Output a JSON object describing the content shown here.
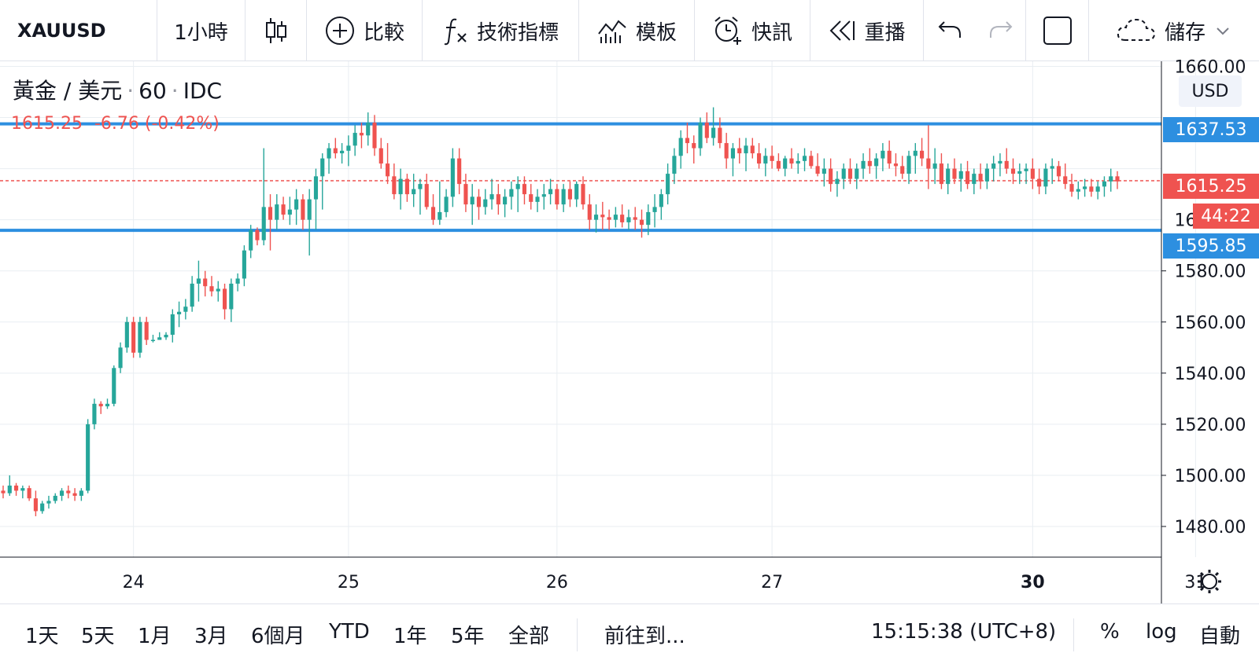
{
  "toolbar": {
    "symbol": "XAUUSD",
    "interval": "1小時",
    "chart_type_icon": "candlestick-icon",
    "compare": "比較",
    "indicators": "技術指標",
    "templates": "模板",
    "alerts": "快訊",
    "replay": "重播",
    "save": "儲存"
  },
  "legend": {
    "title": "黃金 / 美元",
    "interval": "60",
    "source": "IDC",
    "price": "1615.25",
    "change": "-6.76 (-0.42%)"
  },
  "price_axis": {
    "currency": "USD",
    "labels": [
      "1580.00",
      "1560.00",
      "1540.00",
      "1520.00",
      "1500.00",
      "1480.00"
    ],
    "top_label_partial": "1660.00",
    "hidden_label_partial": "1600.00"
  },
  "badges": {
    "upper_line": "1637.53",
    "last_price": "1615.25",
    "countdown": "44:22",
    "lower_line": "1595.85"
  },
  "time_axis": {
    "labels": [
      "24",
      "25",
      "26",
      "27",
      "30",
      "31"
    ]
  },
  "bottombar": {
    "ranges": [
      "1天",
      "5天",
      "1月",
      "3月",
      "6個月",
      "YTD",
      "1年",
      "5年",
      "全部"
    ],
    "goto": "前往到...",
    "clock": "15:15:38 (UTC+8)",
    "percent": "%",
    "log": "log",
    "auto": "自動"
  },
  "colors": {
    "up": "#26a69a",
    "down": "#ef5350",
    "hline": "#2d8fe0",
    "grid": "#e9eef2",
    "axis_text": "#131722"
  },
  "chart_data": {
    "type": "candlestick",
    "interval": "60",
    "ylim": [
      1468,
      1662
    ],
    "horizontal_lines": [
      1637.53,
      1595.85
    ],
    "last_price": 1615.25,
    "x_ticks": [
      {
        "label": "24",
        "index": 20
      },
      {
        "label": "25",
        "index": 53
      },
      {
        "label": "26",
        "index": 85
      },
      {
        "label": "27",
        "index": 118
      },
      {
        "label": "30",
        "index": 158
      },
      {
        "label": "31",
        "index": 183
      }
    ],
    "candles": [
      [
        1494,
        1496,
        1491,
        1493
      ],
      [
        1493,
        1500,
        1492,
        1496
      ],
      [
        1496,
        1497,
        1492,
        1494
      ],
      [
        1494,
        1496,
        1491,
        1495
      ],
      [
        1495,
        1496,
        1490,
        1491
      ],
      [
        1491,
        1494,
        1484,
        1486
      ],
      [
        1486,
        1490,
        1485,
        1489
      ],
      [
        1489,
        1492,
        1487,
        1490
      ],
      [
        1490,
        1493,
        1489,
        1492
      ],
      [
        1492,
        1495,
        1490,
        1494
      ],
      [
        1494,
        1496,
        1491,
        1493
      ],
      [
        1493,
        1495,
        1490,
        1492
      ],
      [
        1492,
        1495,
        1490,
        1494
      ],
      [
        1494,
        1522,
        1493,
        1520
      ],
      [
        1520,
        1530,
        1518,
        1528
      ],
      [
        1528,
        1529,
        1524,
        1527
      ],
      [
        1527,
        1530,
        1526,
        1528
      ],
      [
        1528,
        1543,
        1527,
        1542
      ],
      [
        1542,
        1552,
        1540,
        1550
      ],
      [
        1550,
        1562,
        1548,
        1560
      ],
      [
        1560,
        1562,
        1546,
        1548
      ],
      [
        1548,
        1562,
        1546,
        1560
      ],
      [
        1560,
        1562,
        1551,
        1553
      ],
      [
        1553,
        1555,
        1552,
        1553
      ],
      [
        1553,
        1556,
        1553,
        1554
      ],
      [
        1554,
        1556,
        1553,
        1555
      ],
      [
        1555,
        1565,
        1552,
        1563
      ],
      [
        1563,
        1568,
        1558,
        1564
      ],
      [
        1564,
        1569,
        1561,
        1566
      ],
      [
        1566,
        1578,
        1564,
        1575
      ],
      [
        1575,
        1584,
        1568,
        1577
      ],
      [
        1577,
        1580,
        1570,
        1574
      ],
      [
        1574,
        1578,
        1570,
        1572
      ],
      [
        1572,
        1576,
        1568,
        1573
      ],
      [
        1573,
        1575,
        1561,
        1565
      ],
      [
        1565,
        1577,
        1560,
        1575
      ],
      [
        1575,
        1579,
        1572,
        1577
      ],
      [
        1577,
        1590,
        1574,
        1588
      ],
      [
        1588,
        1598,
        1585,
        1596
      ],
      [
        1596,
        1597,
        1590,
        1592
      ],
      [
        1592,
        1628,
        1590,
        1605
      ],
      [
        1605,
        1610,
        1588,
        1600
      ],
      [
        1600,
        1610,
        1596,
        1606
      ],
      [
        1606,
        1609,
        1600,
        1602
      ],
      [
        1602,
        1609,
        1598,
        1604
      ],
      [
        1604,
        1612,
        1598,
        1608
      ],
      [
        1608,
        1610,
        1596,
        1600
      ],
      [
        1600,
        1612,
        1586,
        1608
      ],
      [
        1608,
        1620,
        1596,
        1617
      ],
      [
        1617,
        1626,
        1604,
        1624
      ],
      [
        1624,
        1630,
        1618,
        1628
      ],
      [
        1628,
        1632,
        1624,
        1626
      ],
      [
        1626,
        1630,
        1622,
        1627
      ],
      [
        1627,
        1633,
        1621,
        1629
      ],
      [
        1629,
        1637,
        1625,
        1634
      ],
      [
        1634,
        1638,
        1628,
        1633
      ],
      [
        1633,
        1642,
        1629,
        1638
      ],
      [
        1638,
        1641,
        1625,
        1628
      ],
      [
        1628,
        1632,
        1620,
        1622
      ],
      [
        1622,
        1630,
        1614,
        1617
      ],
      [
        1617,
        1622,
        1608,
        1610
      ],
      [
        1610,
        1620,
        1604,
        1616
      ],
      [
        1616,
        1618,
        1607,
        1610
      ],
      [
        1610,
        1618,
        1605,
        1612
      ],
      [
        1612,
        1616,
        1602,
        1614
      ],
      [
        1614,
        1618,
        1604,
        1605
      ],
      [
        1605,
        1610,
        1598,
        1600
      ],
      [
        1600,
        1615,
        1598,
        1603
      ],
      [
        1603,
        1612,
        1601,
        1609
      ],
      [
        1609,
        1628,
        1605,
        1624
      ],
      [
        1624,
        1628,
        1610,
        1614
      ],
      [
        1614,
        1618,
        1603,
        1606
      ],
      [
        1606,
        1614,
        1598,
        1609
      ],
      [
        1609,
        1612,
        1600,
        1605
      ],
      [
        1605,
        1612,
        1602,
        1608
      ],
      [
        1608,
        1616,
        1604,
        1610
      ],
      [
        1610,
        1614,
        1602,
        1606
      ],
      [
        1606,
        1612,
        1601,
        1609
      ],
      [
        1609,
        1615,
        1604,
        1612
      ],
      [
        1612,
        1617,
        1603,
        1614
      ],
      [
        1614,
        1617,
        1606,
        1610
      ],
      [
        1610,
        1614,
        1604,
        1607
      ],
      [
        1607,
        1612,
        1603,
        1609
      ],
      [
        1609,
        1614,
        1604,
        1610
      ],
      [
        1610,
        1616,
        1606,
        1612
      ],
      [
        1612,
        1614,
        1604,
        1606
      ],
      [
        1606,
        1614,
        1603,
        1612
      ],
      [
        1612,
        1615,
        1605,
        1608
      ],
      [
        1608,
        1615,
        1605,
        1614
      ],
      [
        1614,
        1617,
        1604,
        1606
      ],
      [
        1606,
        1610,
        1596,
        1600
      ],
      [
        1600,
        1606,
        1595,
        1602
      ],
      [
        1602,
        1607,
        1596,
        1601
      ],
      [
        1601,
        1604,
        1596,
        1600
      ],
      [
        1600,
        1605,
        1597,
        1602
      ],
      [
        1602,
        1606,
        1597,
        1599
      ],
      [
        1599,
        1604,
        1596,
        1601
      ],
      [
        1601,
        1605,
        1596,
        1600
      ],
      [
        1600,
        1604,
        1593,
        1598
      ],
      [
        1598,
        1606,
        1594,
        1603
      ],
      [
        1603,
        1610,
        1597,
        1605
      ],
      [
        1605,
        1612,
        1600,
        1610
      ],
      [
        1610,
        1622,
        1606,
        1618
      ],
      [
        1618,
        1628,
        1614,
        1625
      ],
      [
        1625,
        1635,
        1620,
        1632
      ],
      [
        1632,
        1638,
        1626,
        1630
      ],
      [
        1630,
        1633,
        1622,
        1628
      ],
      [
        1628,
        1640,
        1625,
        1638
      ],
      [
        1638,
        1642,
        1630,
        1632
      ],
      [
        1632,
        1644,
        1629,
        1636
      ],
      [
        1636,
        1640,
        1628,
        1630
      ],
      [
        1630,
        1634,
        1620,
        1624
      ],
      [
        1624,
        1630,
        1617,
        1628
      ],
      [
        1628,
        1632,
        1622,
        1626
      ],
      [
        1626,
        1632,
        1619,
        1629
      ],
      [
        1629,
        1632,
        1624,
        1626
      ],
      [
        1626,
        1630,
        1620,
        1622
      ],
      [
        1622,
        1628,
        1617,
        1625
      ],
      [
        1625,
        1629,
        1620,
        1623
      ],
      [
        1623,
        1626,
        1619,
        1620
      ],
      [
        1620,
        1625,
        1617,
        1624
      ],
      [
        1624,
        1628,
        1620,
        1622
      ],
      [
        1622,
        1626,
        1618,
        1623
      ],
      [
        1623,
        1628,
        1619,
        1625
      ],
      [
        1625,
        1627,
        1620,
        1621
      ],
      [
        1621,
        1626,
        1617,
        1618
      ],
      [
        1618,
        1624,
        1613,
        1620
      ],
      [
        1620,
        1624,
        1611,
        1614
      ],
      [
        1614,
        1619,
        1609,
        1616
      ],
      [
        1616,
        1622,
        1612,
        1620
      ],
      [
        1620,
        1624,
        1614,
        1616
      ],
      [
        1616,
        1622,
        1612,
        1620
      ],
      [
        1620,
        1626,
        1616,
        1623
      ],
      [
        1623,
        1628,
        1618,
        1621
      ],
      [
        1621,
        1626,
        1616,
        1624
      ],
      [
        1624,
        1630,
        1619,
        1627
      ],
      [
        1627,
        1631,
        1620,
        1622
      ],
      [
        1622,
        1626,
        1617,
        1621
      ],
      [
        1621,
        1625,
        1616,
        1618
      ],
      [
        1618,
        1627,
        1614,
        1625
      ],
      [
        1625,
        1630,
        1618,
        1627
      ],
      [
        1627,
        1632,
        1621,
        1624
      ],
      [
        1624,
        1637,
        1612,
        1620
      ],
      [
        1620,
        1628,
        1614,
        1622
      ],
      [
        1622,
        1626,
        1612,
        1614
      ],
      [
        1614,
        1622,
        1610,
        1620
      ],
      [
        1620,
        1624,
        1614,
        1616
      ],
      [
        1616,
        1622,
        1611,
        1619
      ],
      [
        1619,
        1623,
        1612,
        1614
      ],
      [
        1614,
        1620,
        1610,
        1618
      ],
      [
        1618,
        1622,
        1612,
        1615
      ],
      [
        1615,
        1622,
        1612,
        1620
      ],
      [
        1620,
        1625,
        1615,
        1622
      ],
      [
        1622,
        1626,
        1617,
        1623
      ],
      [
        1623,
        1628,
        1618,
        1620
      ],
      [
        1620,
        1624,
        1614,
        1618
      ],
      [
        1618,
        1622,
        1614,
        1619
      ],
      [
        1619,
        1622,
        1614,
        1620
      ],
      [
        1620,
        1624,
        1612,
        1616
      ],
      [
        1616,
        1620,
        1610,
        1613
      ],
      [
        1613,
        1622,
        1610,
        1620
      ],
      [
        1620,
        1624,
        1614,
        1621
      ],
      [
        1621,
        1623,
        1615,
        1617
      ],
      [
        1617,
        1622,
        1612,
        1614
      ],
      [
        1614,
        1618,
        1609,
        1611
      ],
      [
        1611,
        1615,
        1608,
        1612
      ],
      [
        1612,
        1616,
        1609,
        1613
      ],
      [
        1613,
        1616,
        1609,
        1611
      ],
      [
        1611,
        1615,
        1608,
        1613
      ],
      [
        1613,
        1617,
        1609,
        1615
      ],
      [
        1615,
        1620,
        1611,
        1617
      ],
      [
        1617,
        1619,
        1612,
        1615
      ]
    ]
  }
}
